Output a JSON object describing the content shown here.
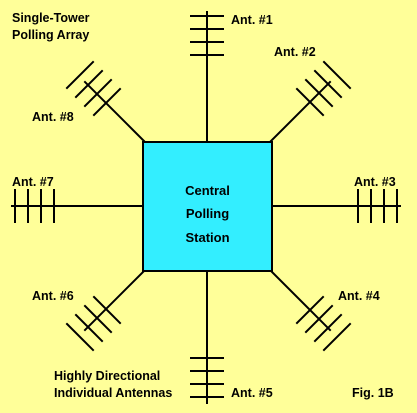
{
  "title_lines": [
    "Single-Tower",
    "Polling Array"
  ],
  "subtitle_lines": [
    "Highly Directional",
    "Individual Antennas"
  ],
  "figure_label": "Fig. 1B",
  "station_lines": [
    "Central",
    "Polling",
    "Station"
  ],
  "antennas": [
    {
      "label": "Ant. #1",
      "direction": "north"
    },
    {
      "label": "Ant. #2",
      "direction": "northeast"
    },
    {
      "label": "Ant. #3",
      "direction": "east"
    },
    {
      "label": "Ant. #4",
      "direction": "southeast"
    },
    {
      "label": "Ant. #5",
      "direction": "south"
    },
    {
      "label": "Ant. #6",
      "direction": "southwest"
    },
    {
      "label": "Ant. #7",
      "direction": "west"
    },
    {
      "label": "Ant. #8",
      "direction": "northwest"
    }
  ],
  "colors": {
    "background": "#ffff99",
    "station_fill": "#33eeff",
    "line": "#000000"
  }
}
